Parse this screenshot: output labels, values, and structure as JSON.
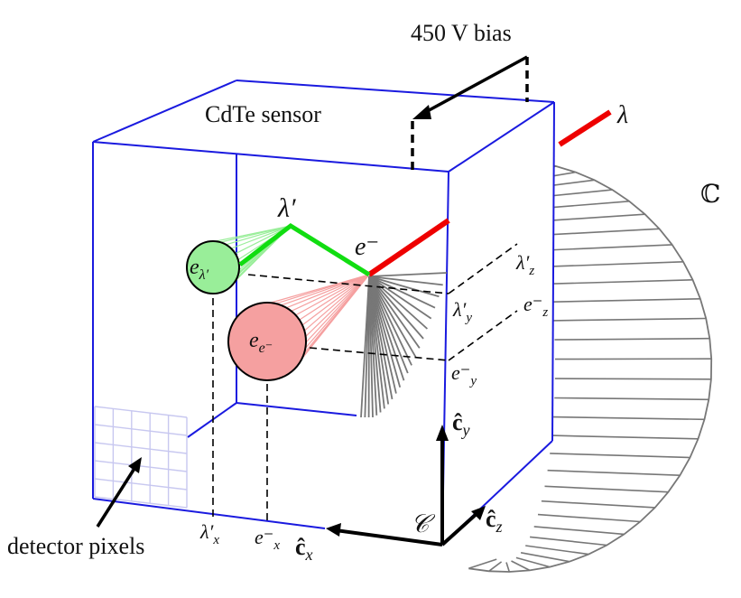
{
  "labels": {
    "bias": "450 V bias",
    "sensor": "CdTe sensor",
    "lambda": "λ",
    "lambda_prime": "λ′",
    "electron": "e⁻",
    "cone_symbol": "ℂ",
    "cluster_photon": "e",
    "cluster_photon_sub": "λ′",
    "cluster_electron": "e",
    "cluster_electron_sub": "e⁻",
    "lambda_z": "λ′",
    "lambda_z_sub": "z",
    "e_z": "e⁻",
    "e_z_sub": "z",
    "lambda_y": "λ′",
    "lambda_y_sub": "y",
    "e_y": "e⁻",
    "e_y_sub": "y",
    "lambda_x": "λ′",
    "lambda_x_sub": "x",
    "e_x": "e⁻",
    "e_x_sub": "x",
    "axis_y": "ĉ",
    "axis_y_sub": "y",
    "axis_z": "ĉ",
    "axis_z_sub": "z",
    "axis_x": "ĉ",
    "axis_x_sub": "x",
    "frame": "𝒞",
    "pixels": "detector pixels"
  },
  "colors": {
    "box_edge": "#1a1adf",
    "incident_ray": "#ee0000",
    "scattered_ray": "#11dd11",
    "photon_cluster": "#99ee99",
    "electron_cluster": "#f5a0a0",
    "cone": "#777777",
    "grid": "#c8c8f0"
  }
}
